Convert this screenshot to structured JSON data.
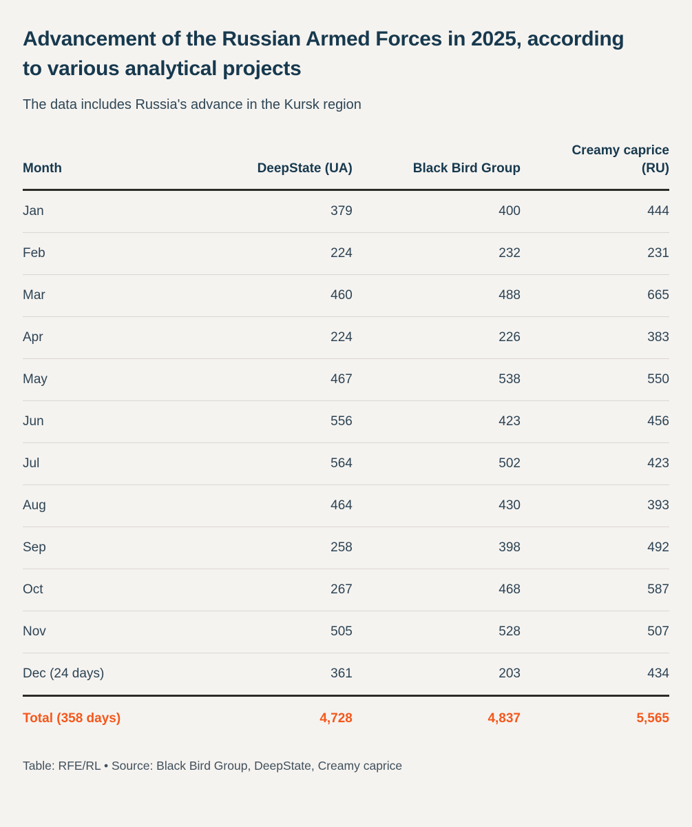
{
  "page": {
    "title": "Advancement of the Russian Armed Forces in 2025, according to various analytical projects",
    "subtitle": "The data includes Russia's advance in the Kursk region",
    "footer": "Table: RFE/RL • Source: Black Bird Group, DeepState, Creamy caprice"
  },
  "colors": {
    "background": "#f5f3f0",
    "heading": "#17394e",
    "body_text": "#2c4354",
    "total_accent": "#f4581c",
    "thick_rule": "#2b2b29",
    "thin_rule": "#d9d6d2"
  },
  "chart_data": {
    "type": "table",
    "columns": [
      "Month",
      "DeepState (UA)",
      "Black Bird Group",
      "Creamy caprice\n(RU)"
    ],
    "rows": [
      {
        "month": "Jan",
        "values": [
          "379",
          "400",
          "444"
        ]
      },
      {
        "month": "Feb",
        "values": [
          "224",
          "232",
          "231"
        ]
      },
      {
        "month": "Mar",
        "values": [
          "460",
          "488",
          "665"
        ]
      },
      {
        "month": "Apr",
        "values": [
          "224",
          "226",
          "383"
        ]
      },
      {
        "month": "May",
        "values": [
          "467",
          "538",
          "550"
        ]
      },
      {
        "month": "Jun",
        "values": [
          "556",
          "423",
          "456"
        ]
      },
      {
        "month": "Jul",
        "values": [
          "564",
          "502",
          "423"
        ]
      },
      {
        "month": "Aug",
        "values": [
          "464",
          "430",
          "393"
        ]
      },
      {
        "month": "Sep",
        "values": [
          "258",
          "398",
          "492"
        ]
      },
      {
        "month": "Oct",
        "values": [
          "267",
          "468",
          "587"
        ]
      },
      {
        "month": "Nov",
        "values": [
          "505",
          "528",
          "507"
        ]
      },
      {
        "month": "Dec (24 days)",
        "values": [
          "361",
          "203",
          "434"
        ]
      }
    ],
    "total": {
      "label": "Total (358 days)",
      "values": [
        "4,728",
        "4,837",
        "5,565"
      ]
    }
  }
}
